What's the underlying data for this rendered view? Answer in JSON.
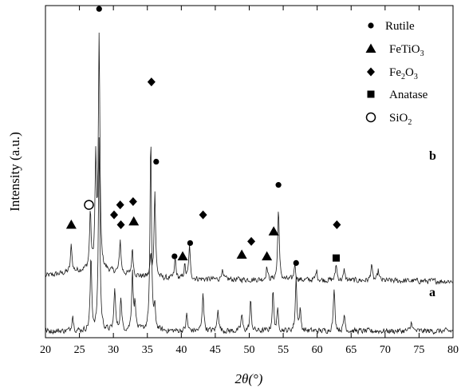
{
  "chart_data": {
    "type": "line",
    "title": "",
    "xlabel": "2θ(°)",
    "ylabel": "Intensity (a.u.)",
    "xlim": [
      20,
      80
    ],
    "xticks": [
      20,
      25,
      30,
      35,
      40,
      45,
      50,
      55,
      60,
      65,
      70,
      75,
      80
    ],
    "grid": false,
    "legend": {
      "position": "top-right",
      "entries": [
        {
          "marker": "circle-filled",
          "label": "Rutile"
        },
        {
          "marker": "triangle",
          "label": "FeTiO",
          "sub": "3"
        },
        {
          "marker": "diamond",
          "label": "Fe",
          "sub": "2",
          "label2": "O",
          "sub2": "3"
        },
        {
          "marker": "square",
          "label": "Anatase"
        },
        {
          "marker": "circle-open",
          "label": "SiO",
          "sub": "2"
        }
      ]
    },
    "series": [
      {
        "label": "b",
        "baseline": 0.18,
        "peaks": [
          {
            "x": 23.8,
            "h": 0.08,
            "phase": "FeTiO3"
          },
          {
            "x": 26.6,
            "h": 0.17
          },
          {
            "x": 27.4,
            "h": 0.32
          },
          {
            "x": 27.9,
            "h": 0.7,
            "phase": "Rutile"
          },
          {
            "x": 31.0,
            "h": 0.1,
            "phase": "Fe2O3"
          },
          {
            "x": 32.8,
            "h": 0.08,
            "phase": "FeTiO3"
          },
          {
            "x": 35.5,
            "h": 0.06
          },
          {
            "x": 36.1,
            "h": 0.26,
            "phase": "Rutile"
          },
          {
            "x": 39.1,
            "h": 0.06,
            "phase": "Rutile"
          },
          {
            "x": 40.5,
            "h": 0.04,
            "phase": "FeTiO3"
          },
          {
            "x": 41.2,
            "h": 0.1,
            "phase": "Rutile"
          },
          {
            "x": 46.0,
            "h": 0.03
          },
          {
            "x": 52.6,
            "h": 0.04,
            "phase": "FeTiO3"
          },
          {
            "x": 54.3,
            "h": 0.22,
            "phase": "Rutile"
          },
          {
            "x": 56.7,
            "h": 0.05,
            "phase": "Rutile"
          },
          {
            "x": 59.9,
            "h": 0.03
          },
          {
            "x": 62.8,
            "h": 0.05,
            "phase": "Anatase"
          },
          {
            "x": 64.0,
            "h": 0.03
          },
          {
            "x": 68.0,
            "h": 0.05
          },
          {
            "x": 69.0,
            "h": 0.03
          }
        ],
        "markers": [
          {
            "x": 23.8,
            "y": 0.34,
            "type": "triangle"
          },
          {
            "x": 27.9,
            "y": 0.99,
            "type": "circle-filled"
          },
          {
            "x": 31.0,
            "y": 0.4,
            "type": "diamond"
          },
          {
            "x": 33.0,
            "y": 0.35,
            "type": "triangle"
          },
          {
            "x": 36.3,
            "y": 0.53,
            "type": "circle-filled"
          },
          {
            "x": 39.0,
            "y": 0.245,
            "type": "circle-filled"
          },
          {
            "x": 40.2,
            "y": 0.245,
            "type": "triangle"
          },
          {
            "x": 41.3,
            "y": 0.285,
            "type": "circle-filled"
          },
          {
            "x": 52.6,
            "y": 0.245,
            "type": "triangle"
          },
          {
            "x": 54.3,
            "y": 0.46,
            "type": "circle-filled"
          },
          {
            "x": 56.9,
            "y": 0.225,
            "type": "circle-filled"
          },
          {
            "x": 62.8,
            "y": 0.24,
            "type": "square"
          }
        ]
      },
      {
        "label": "a",
        "baseline": 0.02,
        "peaks": [
          {
            "x": 24.0,
            "h": 0.05
          },
          {
            "x": 26.7,
            "h": 0.22,
            "phase": "SiO2"
          },
          {
            "x": 27.9,
            "h": 0.58
          },
          {
            "x": 30.2,
            "h": 0.13,
            "phase": "Fe2O3"
          },
          {
            "x": 31.1,
            "h": 0.1,
            "phase": "Fe2O3"
          },
          {
            "x": 32.8,
            "h": 0.18,
            "phase": "Fe2O3"
          },
          {
            "x": 33.2,
            "h": 0.08
          },
          {
            "x": 35.5,
            "h": 0.58,
            "phase": "Fe2O3"
          },
          {
            "x": 36.1,
            "h": 0.06
          },
          {
            "x": 40.8,
            "h": 0.05
          },
          {
            "x": 43.2,
            "h": 0.12,
            "phase": "Fe2O3"
          },
          {
            "x": 45.4,
            "h": 0.07
          },
          {
            "x": 48.9,
            "h": 0.05,
            "phase": "FeTiO3"
          },
          {
            "x": 50.2,
            "h": 0.09,
            "phase": "Fe2O3"
          },
          {
            "x": 53.5,
            "h": 0.12,
            "phase": "FeTiO3"
          },
          {
            "x": 54.2,
            "h": 0.06
          },
          {
            "x": 56.9,
            "h": 0.16
          },
          {
            "x": 57.5,
            "h": 0.06
          },
          {
            "x": 62.5,
            "h": 0.13,
            "phase": "Fe2O3"
          },
          {
            "x": 64.0,
            "h": 0.05
          },
          {
            "x": 73.9,
            "h": 0.03
          }
        ],
        "markers": [
          {
            "x": 26.4,
            "y": 0.4,
            "type": "circle-open"
          },
          {
            "x": 30.1,
            "y": 0.37,
            "type": "diamond"
          },
          {
            "x": 31.1,
            "y": 0.34,
            "type": "diamond"
          },
          {
            "x": 32.9,
            "y": 0.41,
            "type": "diamond"
          },
          {
            "x": 35.6,
            "y": 0.77,
            "type": "diamond"
          },
          {
            "x": 43.2,
            "y": 0.37,
            "type": "diamond"
          },
          {
            "x": 48.9,
            "y": 0.25,
            "type": "triangle"
          },
          {
            "x": 50.3,
            "y": 0.29,
            "type": "diamond"
          },
          {
            "x": 53.6,
            "y": 0.32,
            "type": "triangle"
          },
          {
            "x": 62.9,
            "y": 0.34,
            "type": "diamond"
          }
        ]
      }
    ]
  }
}
